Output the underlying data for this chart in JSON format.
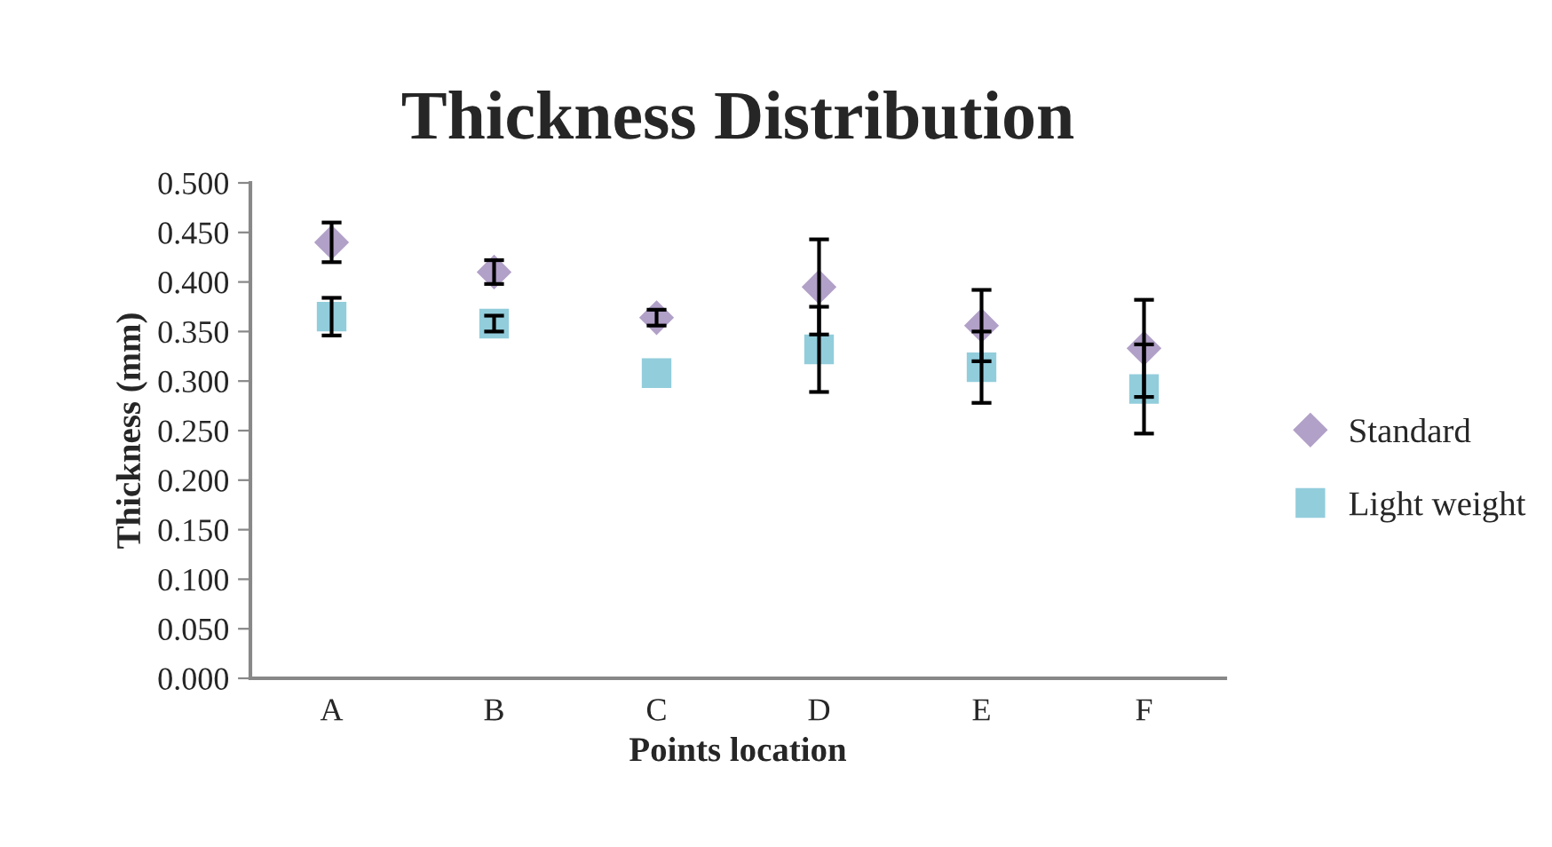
{
  "chart_data": {
    "type": "scatter",
    "title": "Thickness Distribution",
    "xlabel": "Points location",
    "ylabel": "Thickness (mm)",
    "categories": [
      "A",
      "B",
      "C",
      "D",
      "E",
      "F"
    ],
    "series": [
      {
        "name": "Standard",
        "color": "#b1a0c7",
        "marker": "diamond",
        "values": [
          0.44,
          0.41,
          0.364,
          0.395,
          0.356,
          0.333
        ],
        "errors": [
          0.02,
          0.012,
          0.008,
          0.048,
          0.036,
          0.049
        ]
      },
      {
        "name": "Light weight",
        "color": "#92cddc",
        "marker": "square",
        "values": [
          0.365,
          0.358,
          0.308,
          0.332,
          0.314,
          0.292
        ],
        "errors": [
          0.019,
          0.008,
          null,
          0.043,
          0.036,
          0.045
        ]
      }
    ],
    "ylim": [
      0,
      0.5
    ],
    "yticks": [
      {
        "value": 0,
        "label": "0.000"
      },
      {
        "value": 0.05,
        "label": "0.050"
      },
      {
        "value": 0.1,
        "label": "0.100"
      },
      {
        "value": 0.15,
        "label": "0.150"
      },
      {
        "value": 0.2,
        "label": "0.200"
      },
      {
        "value": 0.25,
        "label": "0.250"
      },
      {
        "value": 0.3,
        "label": "0.300"
      },
      {
        "value": 0.35,
        "label": "0.350"
      },
      {
        "value": 0.4,
        "label": "0.400"
      },
      {
        "value": 0.45,
        "label": "0.450"
      },
      {
        "value": 0.5,
        "label": "0.500"
      }
    ],
    "grid": false,
    "legend": "right"
  }
}
